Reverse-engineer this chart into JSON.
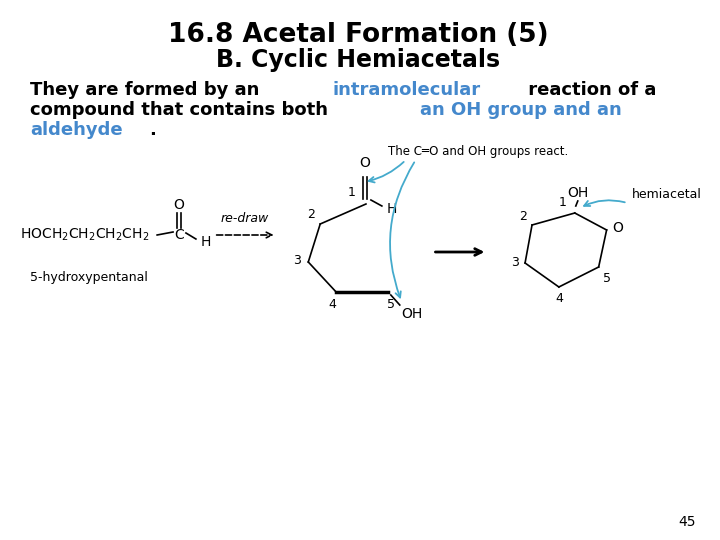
{
  "title_line1": "16.8 Acetal Formation (5)",
  "title_line2": "B. Cyclic Hemiacetals",
  "page_number": "45",
  "bg_color": "#ffffff",
  "title_color": "#000000",
  "blue_color": "#4488cc",
  "cyan_color": "#44aacc",
  "title_fontsize": 19,
  "subtitle_fontsize": 17,
  "body_fontsize": 13,
  "chem_fontsize": 10,
  "label_fontsize": 9
}
